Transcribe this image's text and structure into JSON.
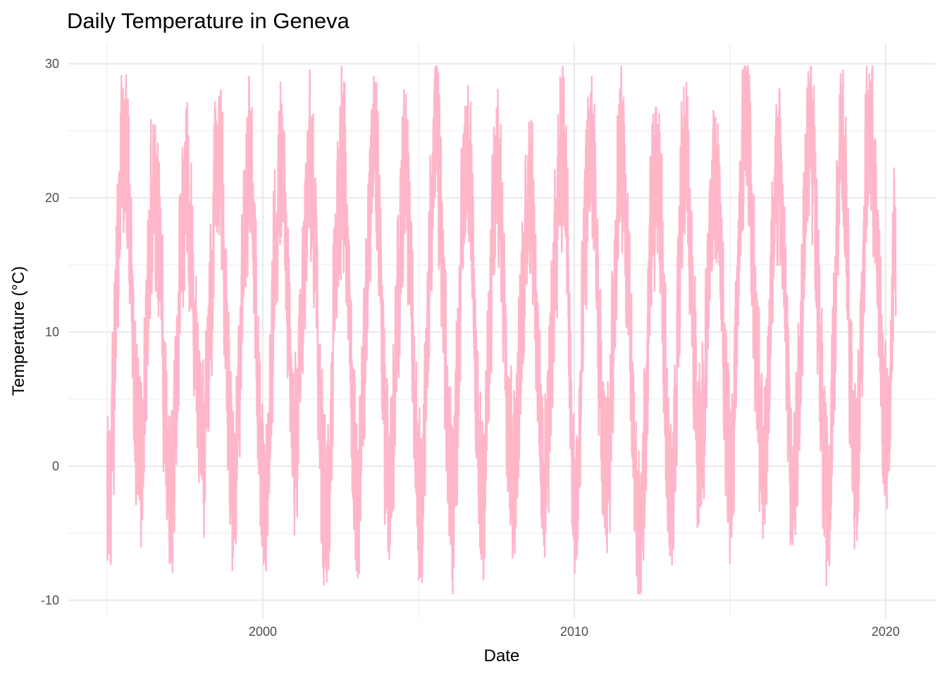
{
  "chart_data": {
    "type": "line",
    "title": "Daily Temperature in Geneva",
    "xlabel": "Date",
    "ylabel": "Temperature (°C)",
    "x_range": [
      "1995-01-01",
      "2020-04-30"
    ],
    "xlim": [
      "1994-01-15",
      "2021-03-01"
    ],
    "ylim": [
      -11,
      31
    ],
    "x_ticks": [
      "2000",
      "2010",
      "2020"
    ],
    "y_ticks": [
      {
        "value": -10,
        "label": "-10"
      },
      {
        "value": 0,
        "label": "0"
      },
      {
        "value": 10,
        "label": "10"
      },
      {
        "value": 20,
        "label": "20"
      },
      {
        "value": 30,
        "label": "30"
      }
    ],
    "grid": true,
    "legend": "none",
    "line_color": "#FFB6C8",
    "series": [
      {
        "values_note": "approximate yearly extremes read from the plot (daily series)",
        "x": [
          "1995-01-05",
          "1995-07-20",
          "1996-01-15",
          "1996-07-15",
          "1997-01-10",
          "1997-07-10",
          "1998-01-25",
          "1998-08-05",
          "1999-01-15",
          "1999-07-20",
          "2000-01-25",
          "2000-07-25",
          "2001-01-15",
          "2001-07-10",
          "2002-01-10",
          "2002-07-15",
          "2003-01-15",
          "2003-08-05",
          "2004-01-20",
          "2004-07-25",
          "2005-01-25",
          "2005-07-20",
          "2006-01-25",
          "2006-07-20",
          "2007-01-10",
          "2007-07-15",
          "2008-01-15",
          "2008-08-01",
          "2009-01-05",
          "2009-08-20",
          "2010-01-10",
          "2010-07-10",
          "2011-01-05",
          "2011-07-05",
          "2012-02-05",
          "2012-08-20",
          "2013-02-10",
          "2013-07-20",
          "2014-01-15",
          "2014-07-15",
          "2015-01-10",
          "2015-07-05",
          "2016-01-20",
          "2016-07-20",
          "2017-01-15",
          "2017-08-01",
          "2018-02-25",
          "2018-07-25",
          "2019-01-20",
          "2019-06-25",
          "2020-01-20",
          "2020-04-25"
        ],
        "y": [
          -7,
          27.3,
          -2.5,
          23.5,
          -6,
          23.4,
          -1,
          27.5,
          -4.8,
          25,
          -6,
          25.7,
          -1.5,
          24.7,
          -7,
          26.3,
          -5.5,
          27.9,
          -5,
          25,
          -5.6,
          28,
          -5.6,
          26.8,
          -5,
          24.3,
          -3,
          24.2,
          -4.5,
          28,
          -7,
          27.3,
          -5,
          26.6,
          -9.2,
          26.7,
          -5,
          26.1,
          -2,
          24.4,
          -2.7,
          29.6,
          -2.8,
          25.3,
          -4,
          29,
          -7,
          27.1,
          -2.6,
          28.1,
          -0.8,
          19.3
        ]
      }
    ]
  }
}
